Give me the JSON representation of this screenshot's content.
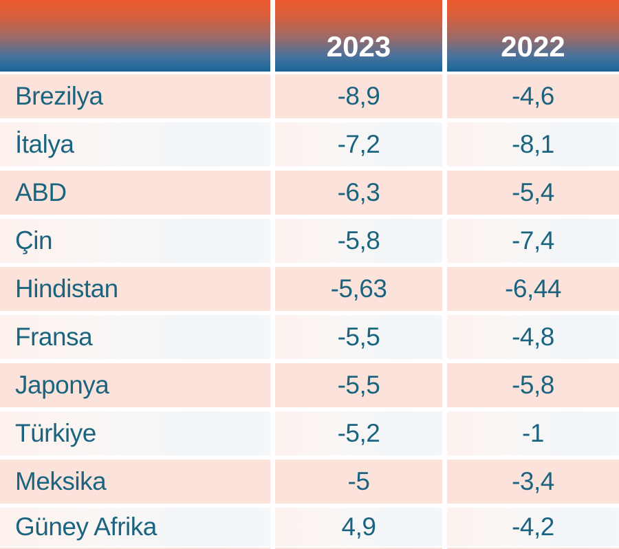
{
  "header": {
    "country_col": "",
    "col_2023": "2023",
    "col_2022": "2022"
  },
  "rows": [
    {
      "country": "Brezilya",
      "y2023": "-8,9",
      "y2022": "-4,6"
    },
    {
      "country": "İtalya",
      "y2023": "-7,2",
      "y2022": "-8,1"
    },
    {
      "country": "ABD",
      "y2023": "-6,3",
      "y2022": "-5,4"
    },
    {
      "country": "Çin",
      "y2023": "-5,8",
      "y2022": "-7,4"
    },
    {
      "country": "Hindistan",
      "y2023": "-5,63",
      "y2022": "-6,44"
    },
    {
      "country": "Fransa",
      "y2023": "-5,5",
      "y2022": "-4,8"
    },
    {
      "country": "Japonya",
      "y2023": "-5,5",
      "y2022": "-5,8"
    },
    {
      "country": "Türkiye",
      "y2023": "-5,2",
      "y2022": "-1"
    },
    {
      "country": "Meksika",
      "y2023": "-5",
      "y2022": "-3,4"
    },
    {
      "country": "Güney Afrika",
      "y2023": "4,9",
      "y2022": "-4,2"
    }
  ],
  "colors": {
    "header_gradient_top": "#ec582d",
    "header_gradient_bottom": "#276c9b",
    "header_bottom_edge": "#1c6190",
    "header_text": "#ffffff",
    "row_pink": "#fbe3dc",
    "row_light_warm": "#fdf2ee",
    "row_light_cool": "#f0f5f9",
    "body_text": "#1a6480",
    "gap": "#ffffff"
  },
  "chart_data": {
    "type": "table",
    "categories": [
      "Brezilya",
      "İtalya",
      "ABD",
      "Çin",
      "Hindistan",
      "Fransa",
      "Japonya",
      "Türkiye",
      "Meksika",
      "Güney Afrika"
    ],
    "series": [
      {
        "name": "2023",
        "values": [
          -8.9,
          -7.2,
          -6.3,
          -5.8,
          -5.63,
          -5.5,
          -5.5,
          -5.2,
          -5,
          4.9
        ]
      },
      {
        "name": "2022",
        "values": [
          -4.6,
          -8.1,
          -5.4,
          -7.4,
          -6.44,
          -4.8,
          -5.8,
          -1,
          -3.4,
          -4.2
        ]
      }
    ],
    "legend_position": "top",
    "grid": false
  }
}
